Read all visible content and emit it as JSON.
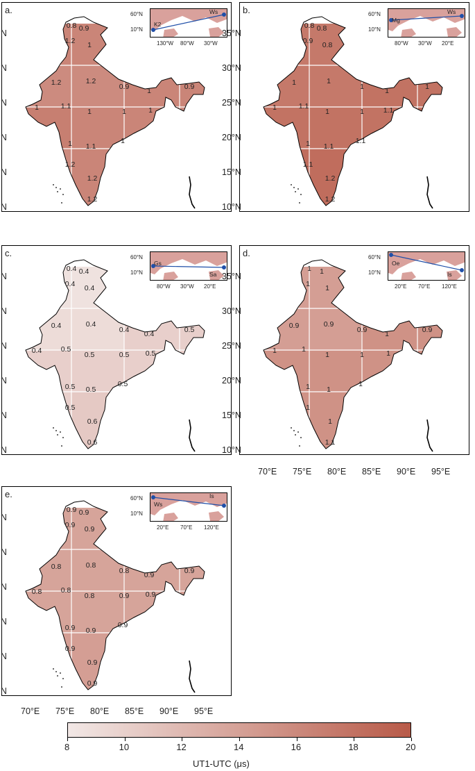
{
  "colors": {
    "low": "#f2e8e6",
    "high": "#b85a48",
    "grid": "#ffffff",
    "arc": "#1f4fa8",
    "land": "#d9a19c"
  },
  "lat_labels": [
    "35°N",
    "30°N",
    "25°N",
    "20°N",
    "15°N",
    "10°N"
  ],
  "lon_labels": [
    "70°E",
    "75°E",
    "80°E",
    "85°E",
    "90°E",
    "95°E"
  ],
  "panels": [
    {
      "label": "a.",
      "values": [
        1.1,
        1.2,
        1.05,
        1.1,
        1.15,
        1.1,
        1.05,
        1.1,
        1.25
      ],
      "text": [
        [
          "0.8",
          0
        ],
        [
          "0.9",
          0
        ],
        [
          "1.2",
          0
        ],
        [
          "1",
          0
        ],
        [
          "1.2",
          1
        ],
        [
          "1.2",
          1
        ],
        [
          "0.9",
          2
        ],
        [
          "1",
          2
        ],
        [
          "0.9",
          2
        ],
        [
          "1",
          3
        ],
        [
          "1.1",
          3
        ],
        [
          "1",
          4
        ],
        [
          "1",
          4
        ],
        [
          "1",
          5
        ],
        [
          "1",
          6
        ],
        [
          "1.1",
          6
        ],
        [
          "1",
          7
        ],
        [
          "1.2",
          6
        ],
        [
          "1.2",
          7
        ],
        [
          "1.2",
          8
        ]
      ],
      "inset": {
        "xticks": [
          "130°W",
          "80°W",
          "30°W"
        ],
        "yticks": [
          "60°N",
          "10°N"
        ],
        "st1": "K2",
        "st2": "Ws"
      }
    },
    {
      "label": "b.",
      "values": [
        1.2,
        1.2,
        1.2,
        1.25,
        1.25,
        1.25,
        1.3,
        1.3,
        1.4
      ],
      "text": [
        [
          "0.8",
          0
        ],
        [
          "0.8",
          0
        ],
        [
          "0.9",
          0
        ],
        [
          "0.8",
          0
        ],
        [
          "1",
          1
        ],
        [
          "1",
          1
        ],
        [
          "1",
          2
        ],
        [
          "1",
          2
        ],
        [
          "1",
          2
        ],
        [
          "1",
          3
        ],
        [
          "1.1",
          3
        ],
        [
          "1",
          4
        ],
        [
          "1",
          4
        ],
        [
          "1.1",
          5
        ],
        [
          "1",
          6
        ],
        [
          "1.1",
          6
        ],
        [
          "1.1",
          7
        ],
        [
          "1.1",
          6
        ],
        [
          "1.2",
          7
        ],
        [
          "1.2",
          8
        ]
      ],
      "inset": {
        "xticks": [
          "80°W",
          "30°W",
          "20°E"
        ],
        "yticks": [
          "60°N",
          "10°N"
        ],
        "st1": "Mg",
        "st2": "Ws"
      }
    },
    {
      "label": "c.",
      "values": [
        0.35,
        0.4,
        0.4,
        0.5,
        0.5,
        0.5,
        0.5,
        0.55,
        0.6
      ],
      "text": [
        [
          "0.4",
          0
        ],
        [
          "0.4",
          0
        ],
        [
          "0.4",
          0
        ],
        [
          "0.4",
          0
        ],
        [
          "0.4",
          1
        ],
        [
          "0.4",
          1
        ],
        [
          "0.4",
          2
        ],
        [
          "0.4",
          2
        ],
        [
          "0.5",
          2
        ],
        [
          "0.4",
          3
        ],
        [
          "0.5",
          3
        ],
        [
          "0.5",
          4
        ],
        [
          "0.5",
          4
        ],
        [
          "0.5",
          5
        ],
        [
          "0.5",
          6
        ],
        [
          "0.5",
          6
        ],
        [
          "0.5",
          7
        ],
        [
          "0.5",
          6
        ],
        [
          "0.6",
          7
        ],
        [
          "0.6",
          8
        ]
      ],
      "inset": {
        "xticks": [
          "80°W",
          "30°W",
          "20°E"
        ],
        "yticks": [
          "60°N",
          "10°N"
        ],
        "st1": "Gs",
        "st2": "Sa"
      }
    },
    {
      "label": "d.",
      "values": [
        0.9,
        0.9,
        0.9,
        1.0,
        1.0,
        1.0,
        1.0,
        1.0,
        1.05
      ],
      "text": [
        [
          "1",
          0
        ],
        [
          "1",
          0
        ],
        [
          "1",
          0
        ],
        [
          "1",
          0
        ],
        [
          "0.9",
          1
        ],
        [
          "0.9",
          1
        ],
        [
          "0.9",
          2
        ],
        [
          "1",
          2
        ],
        [
          "0.9",
          2
        ],
        [
          "1",
          3
        ],
        [
          "1",
          3
        ],
        [
          "1",
          4
        ],
        [
          "1",
          4
        ],
        [
          "1",
          5
        ],
        [
          "1",
          6
        ],
        [
          "1",
          6
        ],
        [
          "1",
          7
        ],
        [
          "1",
          6
        ],
        [
          "1",
          7
        ],
        [
          "1.1",
          8
        ]
      ],
      "inset": {
        "xticks": [
          "20°E",
          "70°E",
          "120°E"
        ],
        "yticks": [
          "60°N",
          "10°N"
        ],
        "st1": "Oe",
        "st2": "Is"
      }
    },
    {
      "label": "e.",
      "values": [
        0.85,
        0.8,
        0.85,
        0.85,
        0.85,
        0.85,
        0.9,
        0.9,
        0.9
      ],
      "text": [
        [
          "0.9",
          0
        ],
        [
          "0.9",
          0
        ],
        [
          "0.9",
          0
        ],
        [
          "0.9",
          0
        ],
        [
          "0.8",
          1
        ],
        [
          "0.8",
          1
        ],
        [
          "0.8",
          2
        ],
        [
          "0.9",
          2
        ],
        [
          "0.9",
          2
        ],
        [
          "0.8",
          3
        ],
        [
          "0.8",
          3
        ],
        [
          "0.8",
          4
        ],
        [
          "0.9",
          4
        ],
        [
          "0.9",
          5
        ],
        [
          "0.9",
          6
        ],
        [
          "0.9",
          6
        ],
        [
          "0.9",
          7
        ],
        [
          "0.9",
          6
        ],
        [
          "0.9",
          7
        ],
        [
          "0.9",
          8
        ]
      ],
      "inset": {
        "xticks": [
          "20°E",
          "70°E",
          "120°E"
        ],
        "yticks": [
          "60°N",
          "10°N"
        ],
        "st1": "Ws",
        "st2": "Is"
      }
    }
  ],
  "colorbar": {
    "ticks": [
      "8",
      "10",
      "12",
      "14",
      "16",
      "18",
      "20"
    ],
    "title": "UT1-UTC (μs)"
  }
}
